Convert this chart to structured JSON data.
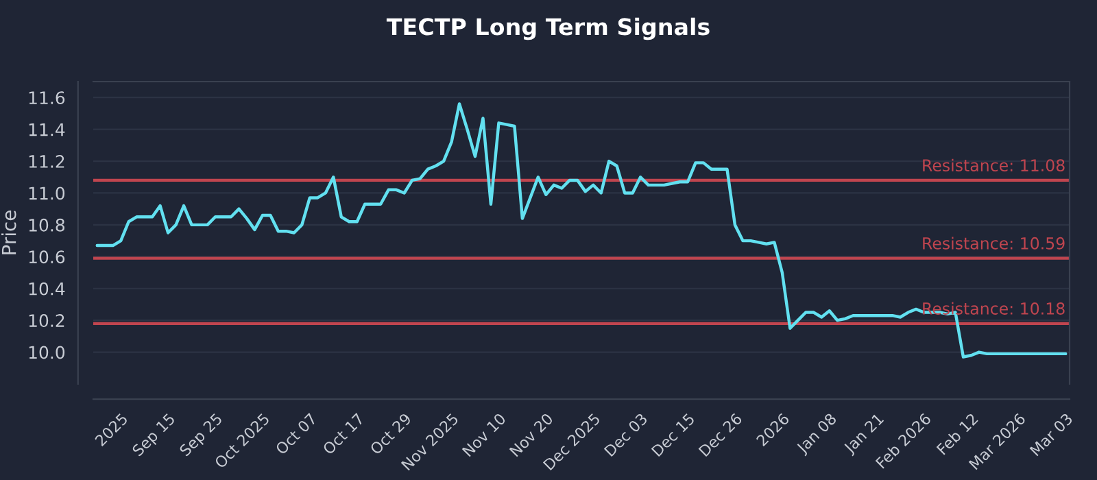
{
  "chart_data": {
    "type": "line",
    "title": "TECTP Long Term Signals",
    "ylabel": "Price",
    "categories": [
      null,
      null,
      null,
      "2025",
      null,
      null,
      null,
      null,
      null,
      "Sep 15",
      null,
      null,
      null,
      null,
      null,
      "Sep 25",
      null,
      null,
      null,
      null,
      null,
      "Oct 2025",
      null,
      null,
      null,
      null,
      null,
      "Oct 07",
      null,
      null,
      null,
      null,
      null,
      "Oct 17",
      null,
      null,
      null,
      null,
      null,
      "Oct 29",
      null,
      null,
      null,
      null,
      null,
      "Nov 2025",
      null,
      null,
      null,
      null,
      null,
      "Nov 10",
      null,
      null,
      null,
      null,
      null,
      "Nov 20",
      null,
      null,
      null,
      null,
      null,
      "Dec 2025",
      null,
      null,
      null,
      null,
      null,
      "Dec 03",
      null,
      null,
      null,
      null,
      null,
      "Dec 15",
      null,
      null,
      null,
      null,
      null,
      "Dec 26",
      null,
      null,
      null,
      null,
      null,
      "2026",
      null,
      null,
      null,
      null,
      null,
      "Jan 08",
      null,
      null,
      null,
      null,
      null,
      "Jan 21",
      null,
      null,
      null,
      null,
      null,
      "Feb 2026",
      null,
      null,
      null,
      null,
      null,
      "Feb 12",
      null,
      null,
      null,
      null,
      null,
      "Mar 2026",
      null,
      null,
      null,
      null,
      null,
      "Mar 03"
    ],
    "series": [
      {
        "color": "#62e0f0",
        "values": [
          10.67,
          10.67,
          10.67,
          10.7,
          10.82,
          10.85,
          10.85,
          10.85,
          10.92,
          10.75,
          10.8,
          10.92,
          10.8,
          10.8,
          10.8,
          10.85,
          10.85,
          10.85,
          10.9,
          10.84,
          10.77,
          10.86,
          10.86,
          10.76,
          10.76,
          10.75,
          10.8,
          10.97,
          10.97,
          11.0,
          11.1,
          10.85,
          10.82,
          10.82,
          10.93,
          10.93,
          10.93,
          11.02,
          11.02,
          11.0,
          11.08,
          11.09,
          11.15,
          11.17,
          11.2,
          11.32,
          11.56,
          11.4,
          11.23,
          11.47,
          10.93,
          11.44,
          11.43,
          11.42,
          10.84,
          10.97,
          11.1,
          10.99,
          11.05,
          11.03,
          11.08,
          11.08,
          11.01,
          11.05,
          11.0,
          11.2,
          11.17,
          11.0,
          11.0,
          11.1,
          11.05,
          11.05,
          11.05,
          11.06,
          11.07,
          11.07,
          11.19,
          11.19,
          11.15,
          11.15,
          11.15,
          10.8,
          10.7,
          10.7,
          10.69,
          10.68,
          10.69,
          10.5,
          10.15,
          10.2,
          10.25,
          10.25,
          10.22,
          10.26,
          10.2,
          10.21,
          10.23,
          10.23,
          10.23,
          10.23,
          10.23,
          10.23,
          10.22,
          10.25,
          10.27,
          10.25,
          10.25,
          10.25,
          10.24,
          10.25,
          9.97,
          9.98,
          10.0,
          9.99,
          9.99,
          9.99,
          9.99,
          9.99,
          9.99,
          9.99,
          9.99,
          9.99,
          9.99,
          9.99
        ]
      }
    ],
    "ylim": [
      9.8,
      11.7
    ],
    "yticks": [
      {
        "value": 10.0,
        "label": "10.0"
      },
      {
        "value": 10.2,
        "label": "10.2"
      },
      {
        "value": 10.4,
        "label": "10.4"
      },
      {
        "value": 10.6,
        "label": "10.6"
      },
      {
        "value": 10.8,
        "label": "10.8"
      },
      {
        "value": 11.0,
        "label": "11.0"
      },
      {
        "value": 11.2,
        "label": "11.2"
      },
      {
        "value": 11.4,
        "label": "11.4"
      },
      {
        "value": 11.6,
        "label": "11.6"
      }
    ],
    "ref_lines": [
      {
        "axis": "y",
        "value": 11.08,
        "label": "Resistance: 11.08",
        "color": "#c0454f"
      },
      {
        "axis": "y",
        "value": 10.59,
        "label": "Resistance: 10.59",
        "color": "#c0454f"
      },
      {
        "axis": "y",
        "value": 10.18,
        "label": "Resistance: 10.18",
        "color": "#c0454f"
      }
    ],
    "grid": "y",
    "legend": false
  }
}
